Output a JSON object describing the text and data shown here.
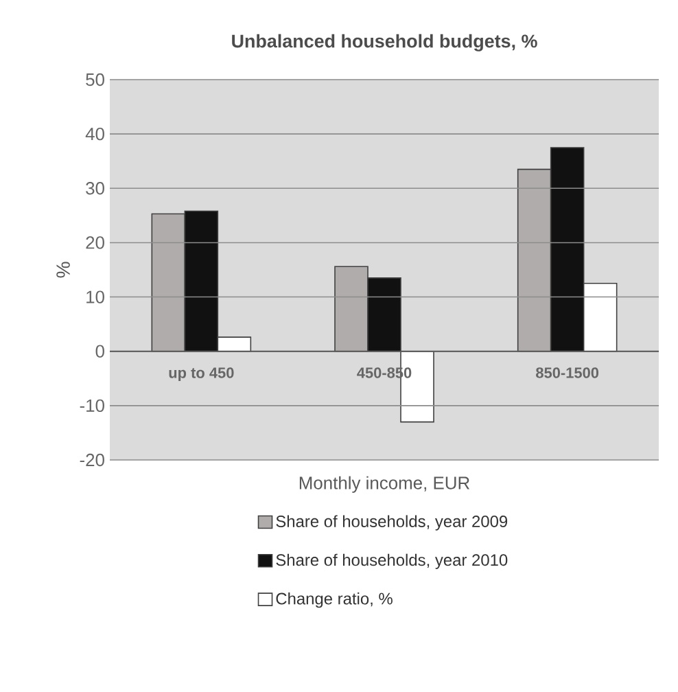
{
  "chart_data": {
    "type": "bar",
    "title": "Unbalanced household budgets, %",
    "xlabel": "Monthly income, EUR",
    "ylabel": "%",
    "categories": [
      "up to 450",
      "450-850",
      "850-1500"
    ],
    "series": [
      {
        "name": "Share of households, year 2009",
        "color": "#b0acab",
        "values": [
          25.3,
          15.6,
          33.5
        ]
      },
      {
        "name": "Share of households, year 2010",
        "color": "#111111",
        "values": [
          25.8,
          13.5,
          37.5
        ]
      },
      {
        "name": "Change ratio, %",
        "color": "#ffffff",
        "values": [
          2.6,
          -13.0,
          12.5
        ]
      }
    ],
    "ylim": [
      -20,
      50
    ],
    "yticks": [
      -20,
      -10,
      0,
      10,
      20,
      30,
      40,
      50
    ],
    "grid": "y",
    "legend": "bottom"
  }
}
